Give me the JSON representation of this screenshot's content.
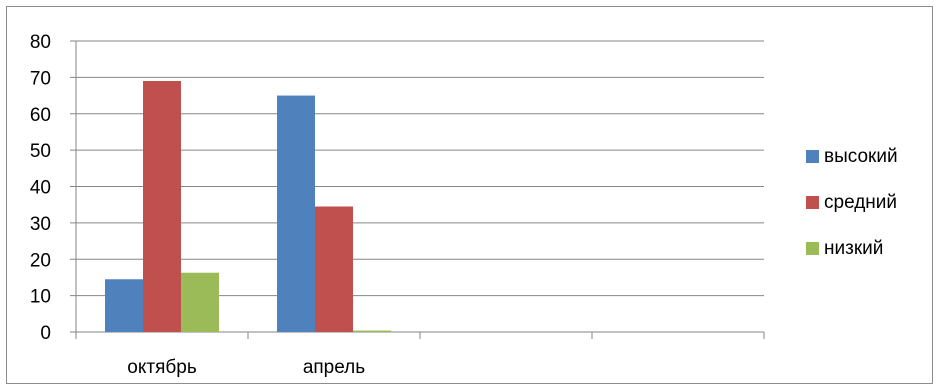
{
  "chart_data": {
    "type": "bar",
    "categories": [
      "октябрь",
      "апрель",
      "",
      ""
    ],
    "series": [
      {
        "name": "высокий",
        "color": "#4f81bd",
        "values": [
          14.5,
          65,
          null,
          null
        ]
      },
      {
        "name": "средний",
        "color": "#c0504d",
        "values": [
          69,
          34.5,
          null,
          null
        ]
      },
      {
        "name": "низкий",
        "color": "#9bbb59",
        "values": [
          16.3,
          0.4,
          null,
          null
        ]
      }
    ],
    "yticks": [
      "0",
      "10",
      "20",
      "30",
      "40",
      "50",
      "60",
      "70",
      "80"
    ],
    "ylim": [
      0,
      80
    ],
    "grid": true,
    "legend_position": "right",
    "title": "",
    "xlabel": "",
    "ylabel": ""
  }
}
